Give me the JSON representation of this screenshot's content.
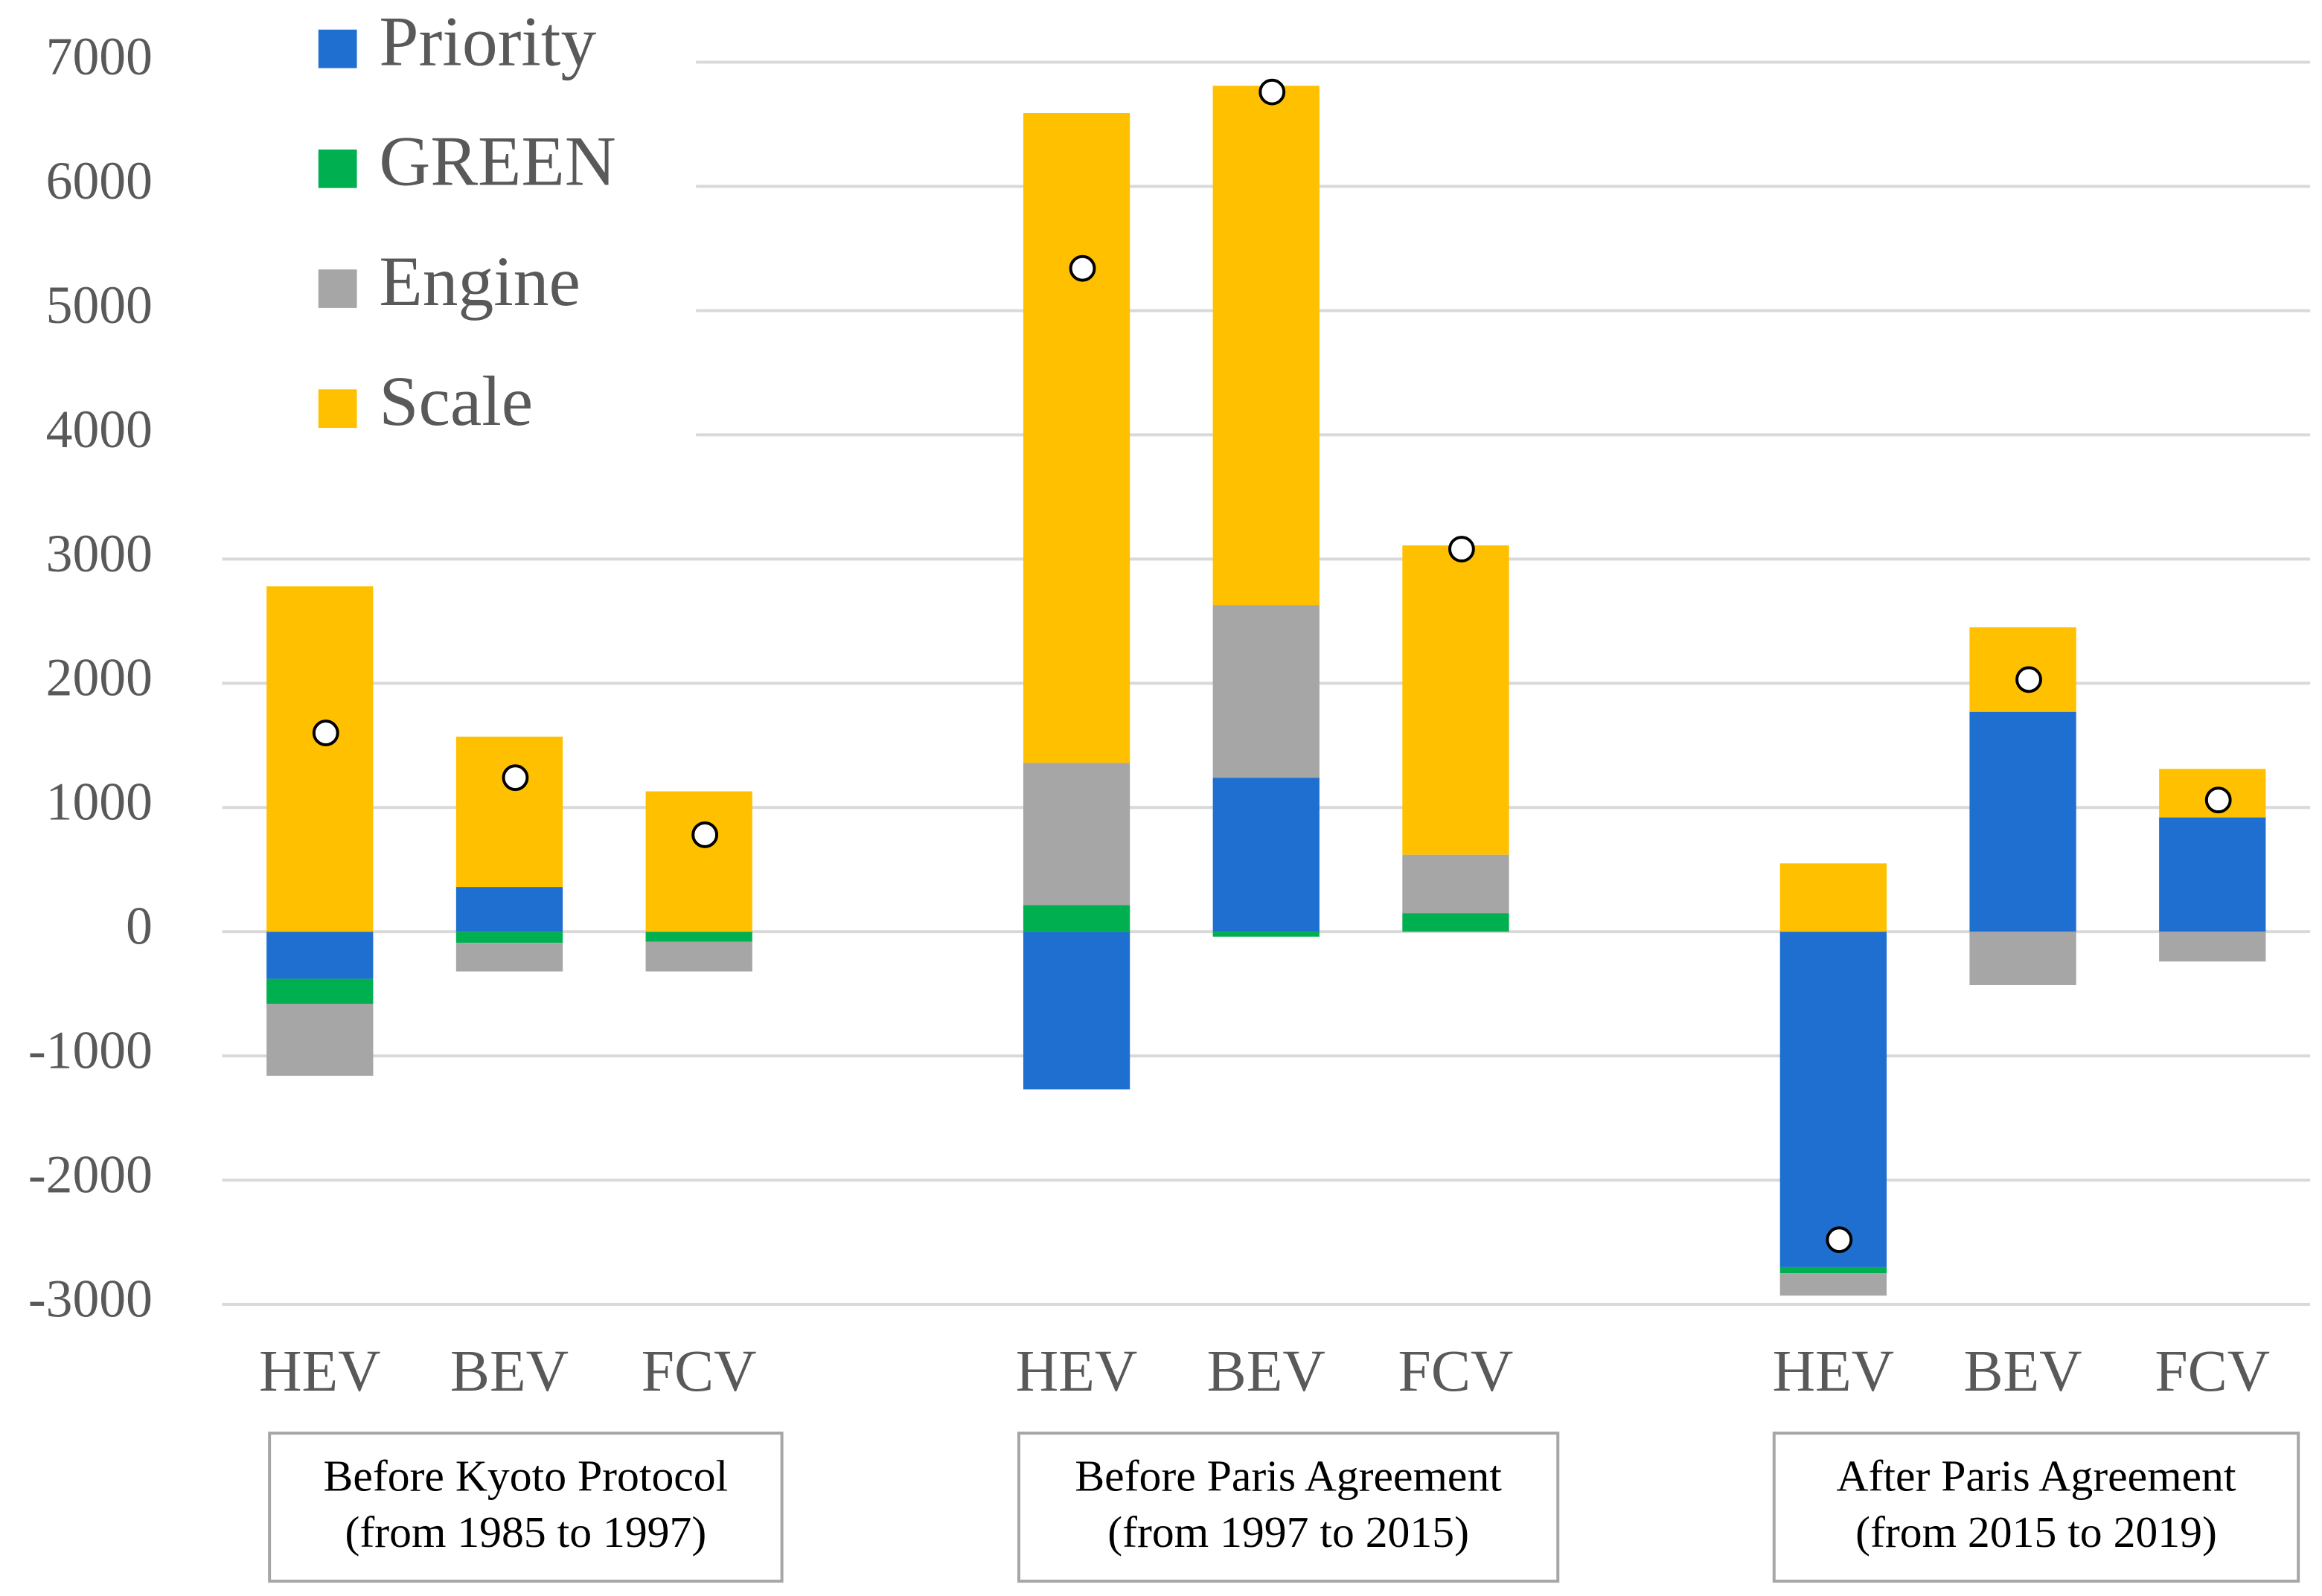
{
  "chart_data": {
    "type": "stacked_bar",
    "categories": [
      "HEV",
      "BEV",
      "FCV",
      "HEV",
      "BEV",
      "FCV",
      "HEV",
      "BEV",
      "FCV"
    ],
    "groups": [
      [
        "Before Kyoto Protocol",
        "(from 1985 to 1997)"
      ],
      [
        "Before Paris Agreement",
        "(from 1997 to 2015)"
      ],
      [
        "After Paris Agreement",
        "(from 2015 to 2019)"
      ]
    ],
    "series": [
      {
        "name": "Priority",
        "color": "#1f6fd0",
        "values": [
          -380,
          360,
          0,
          -1270,
          1240,
          0,
          -2700,
          1770,
          920
        ]
      },
      {
        "name": "GREEN",
        "color": "#00b050",
        "values": [
          -200,
          -90,
          -80,
          215,
          -40,
          150,
          -50,
          0,
          0
        ]
      },
      {
        "name": "Engine",
        "color": "#a6a6a6",
        "values": [
          -580,
          -230,
          -240,
          1145,
          1390,
          470,
          -180,
          -430,
          -240
        ]
      },
      {
        "name": "Scale",
        "color": "#ffc000",
        "values": [
          2780,
          1210,
          1130,
          5230,
          4180,
          2490,
          550,
          680,
          390
        ]
      }
    ],
    "markers": {
      "values": [
        1600,
        1240,
        780,
        5340,
        6760,
        3080,
        -2480,
        2030,
        1060
      ]
    },
    "ylim": [
      -3000,
      7000
    ],
    "yticks": [
      -3000,
      -2000,
      -1000,
      0,
      1000,
      2000,
      3000,
      4000,
      5000,
      6000,
      7000
    ],
    "grid": true,
    "legend": "top-left"
  }
}
